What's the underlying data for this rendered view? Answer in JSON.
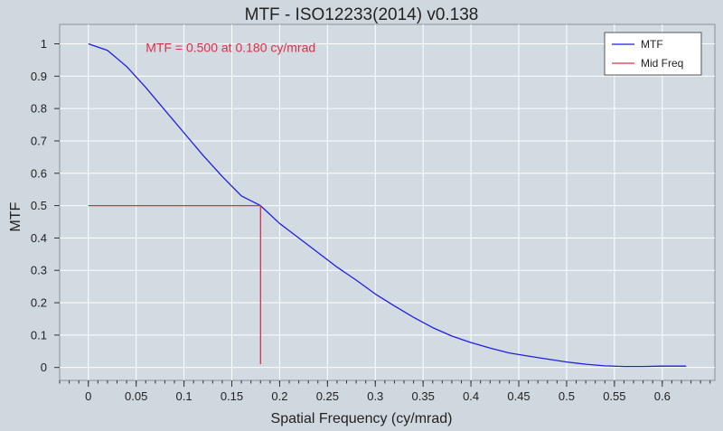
{
  "chart_data": {
    "type": "line",
    "title": "MTF - ISO12233(2014) v0.138",
    "xlabel": "Spatial Frequency (cy/mrad)",
    "ylabel": "MTF",
    "xlim": [
      -0.03,
      0.655
    ],
    "ylim": [
      -0.04,
      1.06
    ],
    "x_ticks": [
      0,
      0.05,
      0.1,
      0.15,
      0.2,
      0.25,
      0.3,
      0.35,
      0.4,
      0.45,
      0.5,
      0.55,
      0.6
    ],
    "x_tick_labels": [
      "0",
      "0.05",
      "0.1",
      "0.15",
      "0.2",
      "0.25",
      "0.3",
      "0.35",
      "0.4",
      "0.45",
      "0.5",
      "0.55",
      "0.6"
    ],
    "x_minor_step": 0.01,
    "y_ticks": [
      0,
      0.1,
      0.2,
      0.3,
      0.4,
      0.5,
      0.6,
      0.7,
      0.8,
      0.9,
      1
    ],
    "y_tick_labels": [
      "0",
      "0.1",
      "0.2",
      "0.3",
      "0.4",
      "0.5",
      "0.6",
      "0.7",
      "0.8",
      "0.9",
      "1"
    ],
    "grid": true,
    "legend_position": "top-right",
    "series": [
      {
        "name": "MTF",
        "color": "#1f1fe0",
        "x": [
          0,
          0.02,
          0.04,
          0.06,
          0.08,
          0.1,
          0.12,
          0.14,
          0.16,
          0.18,
          0.2,
          0.22,
          0.24,
          0.26,
          0.28,
          0.3,
          0.32,
          0.34,
          0.36,
          0.38,
          0.4,
          0.42,
          0.44,
          0.46,
          0.48,
          0.5,
          0.52,
          0.54,
          0.56,
          0.58,
          0.6,
          0.625
        ],
        "y": [
          1.0,
          0.98,
          0.93,
          0.865,
          0.795,
          0.725,
          0.655,
          0.59,
          0.53,
          0.5,
          0.445,
          0.4,
          0.355,
          0.31,
          0.27,
          0.227,
          0.19,
          0.155,
          0.123,
          0.097,
          0.077,
          0.06,
          0.045,
          0.035,
          0.026,
          0.017,
          0.01,
          0.005,
          0.003,
          0.003,
          0.004,
          0.004
        ]
      },
      {
        "name": "Mid Freq",
        "color": "#d9304a",
        "x": [
          0,
          0.18,
          0.18
        ],
        "y": [
          0.5,
          0.5,
          0.01
        ]
      }
    ],
    "annotations": [
      {
        "text": "MTF = 0.500 at 0.180 cy/mrad",
        "x": 0.06,
        "y": 0.975,
        "color": "#d9304a"
      }
    ]
  }
}
